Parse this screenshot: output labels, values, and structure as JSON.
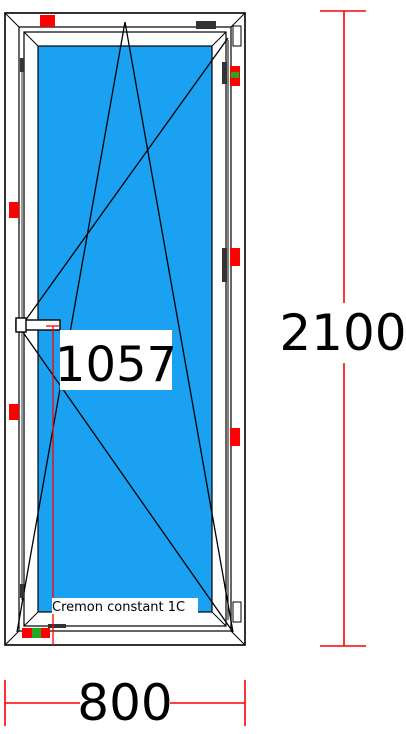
{
  "dimensions": {
    "width_label": "800",
    "height_label": "2100",
    "handle_height_label": "1057"
  },
  "hardware": {
    "label": "Cremon constant 1C"
  },
  "colors": {
    "glass": "#1aa1f1",
    "frame_stroke": "#000000",
    "dimension_line": "#ff0000",
    "hinge_red": "#ff0000",
    "hinge_green": "#22aa22"
  }
}
